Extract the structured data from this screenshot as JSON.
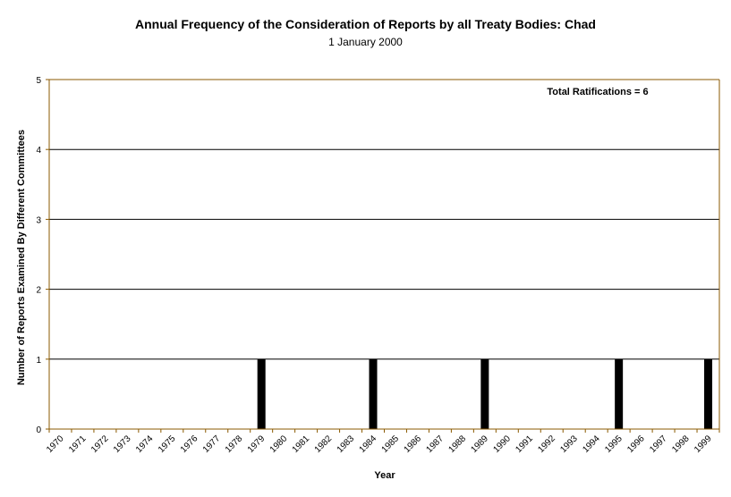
{
  "chart_data": {
    "type": "bar",
    "title": "Annual Frequency of the Consideration of Reports by all Treaty Bodies: Chad",
    "subtitle": "1 January 2000",
    "xlabel": "Year",
    "ylabel": "Number of Reports Examined By Different Committees",
    "ylim": [
      0,
      5
    ],
    "yticks": [
      0,
      1,
      2,
      3,
      4,
      5
    ],
    "grid": true,
    "annotation": "Total Ratifications = 6",
    "categories": [
      "1970",
      "1971",
      "1972",
      "1973",
      "1974",
      "1975",
      "1976",
      "1977",
      "1978",
      "1979",
      "1980",
      "1981",
      "1982",
      "1983",
      "1984",
      "1985",
      "1986",
      "1987",
      "1988",
      "1989",
      "1990",
      "1991",
      "1992",
      "1993",
      "1994",
      "1995",
      "1996",
      "1997",
      "1998",
      "1999"
    ],
    "values": [
      0,
      0,
      0,
      0,
      0,
      0,
      0,
      0,
      0,
      1,
      0,
      0,
      0,
      0,
      1,
      0,
      0,
      0,
      0,
      1,
      0,
      0,
      0,
      0,
      0,
      1,
      0,
      0,
      0,
      1
    ],
    "colors": {
      "bar": "#000000",
      "axis": "#8B5A00",
      "grid": "#000000"
    }
  }
}
